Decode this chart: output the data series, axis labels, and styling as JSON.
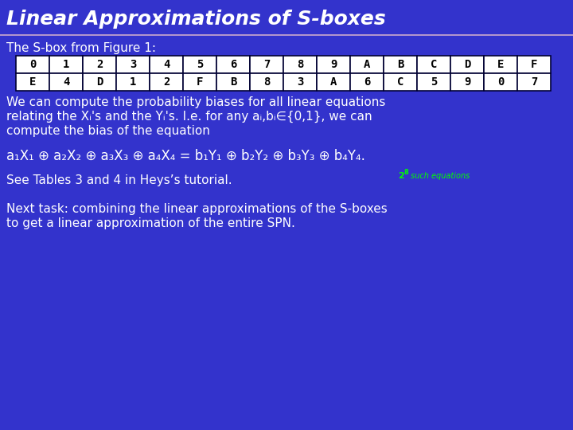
{
  "title": "Linear Approximations of S-boxes",
  "bg_color": "#3333cc",
  "title_color": "#ffffff",
  "divider_color": "#ccaacc",
  "subtitle": "The S-box from Figure 1:",
  "table_row1": [
    "0",
    "1",
    "2",
    "3",
    "4",
    "5",
    "6",
    "7",
    "8",
    "9",
    "A",
    "B",
    "C",
    "D",
    "E",
    "F"
  ],
  "table_row2": [
    "E",
    "4",
    "D",
    "1",
    "2",
    "F",
    "B",
    "8",
    "3",
    "A",
    "6",
    "C",
    "5",
    "9",
    "0",
    "7"
  ],
  "table_text_color": "#000000",
  "table_bg": "#ffffff",
  "table_border": "#000033",
  "body_text_color": "#ffffff",
  "annotation_color": "#00ff00",
  "see_tables": "See Tables 3 and 4 in Heys’s tutorial.",
  "next_task_line1": "Next task: combining the linear approximations of the S-boxes",
  "next_task_line2": "to get a linear approximation of the entire SPN.",
  "font_size_title": 18,
  "font_size_body": 11,
  "font_size_eq": 12,
  "font_size_table": 10,
  "font_size_annot": 8,
  "font_size_annot_exp": 6
}
